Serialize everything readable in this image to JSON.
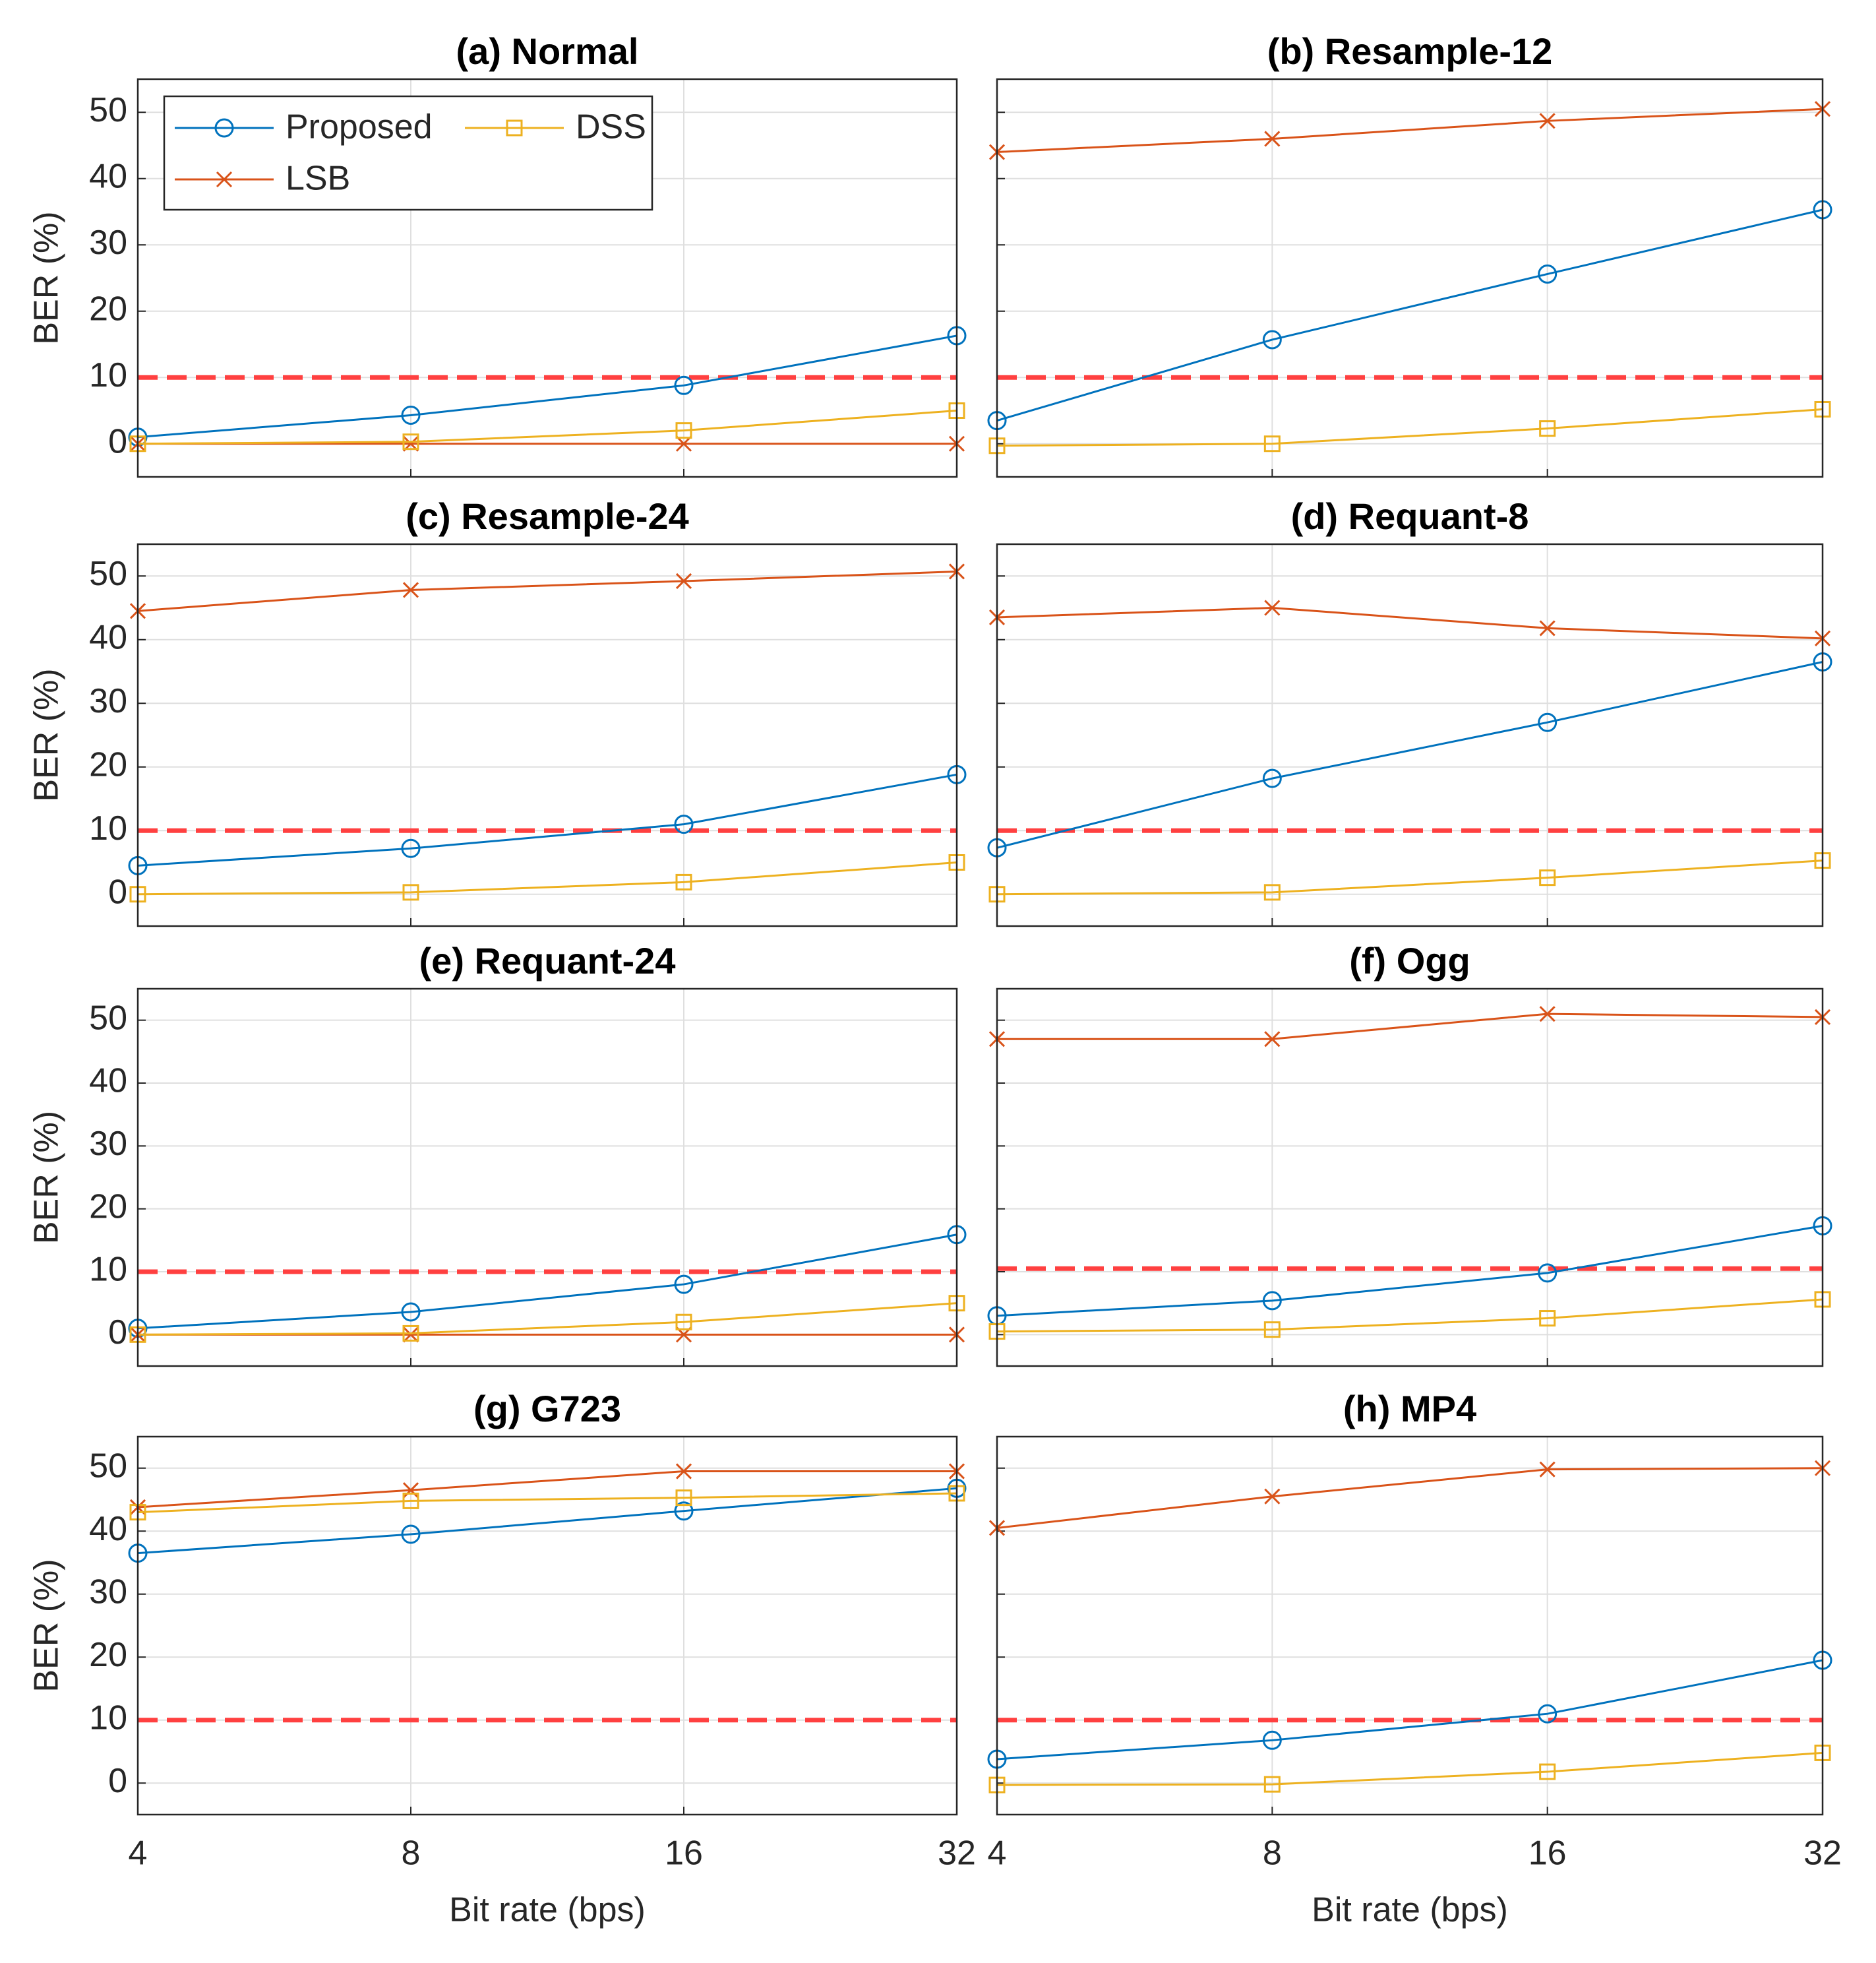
{
  "chart_data": [
    {
      "type": "line",
      "title": "(a) Normal",
      "ylabel": "BER (%)",
      "xscale": "log",
      "x": [
        4,
        8,
        16,
        32
      ],
      "xlim": [
        4,
        32
      ],
      "xticks": [
        4,
        8,
        16,
        32
      ],
      "ylim": [
        -5,
        55
      ],
      "yticks": [
        0,
        10,
        20,
        30,
        40,
        50
      ],
      "grid": true,
      "xtick_labels": false,
      "ytick_labels": true,
      "threshold": 10,
      "threshold_color": "#ff4040",
      "legend": "upper left",
      "series": [
        {
          "name": "Proposed",
          "color": "#0072bd",
          "marker": "circle",
          "values": [
            1,
            4.3,
            8.8,
            16.3
          ]
        },
        {
          "name": "LSB",
          "color": "#d95319",
          "marker": "x",
          "values": [
            0,
            0,
            0,
            0
          ]
        },
        {
          "name": "DSS",
          "color": "#edb120",
          "marker": "square",
          "values": [
            0,
            0.3,
            2,
            5
          ]
        }
      ]
    },
    {
      "type": "line",
      "title": "(b) Resample-12",
      "xscale": "log",
      "x": [
        4,
        8,
        16,
        32
      ],
      "xlim": [
        4,
        32
      ],
      "xticks": [
        4,
        8,
        16,
        32
      ],
      "ylim": [
        -5,
        55
      ],
      "yticks": [
        0,
        10,
        20,
        30,
        40,
        50
      ],
      "grid": true,
      "xtick_labels": false,
      "ytick_labels": false,
      "threshold": 10,
      "threshold_color": "#ff4040",
      "series": [
        {
          "color": "#0072bd",
          "marker": "circle",
          "values": [
            3.5,
            15.7,
            25.6,
            35.3
          ]
        },
        {
          "color": "#d95319",
          "marker": "x",
          "values": [
            44,
            46,
            48.7,
            50.5
          ]
        },
        {
          "color": "#edb120",
          "marker": "square",
          "values": [
            -0.3,
            0,
            2.3,
            5.2
          ]
        }
      ]
    },
    {
      "type": "line",
      "title": "(c) Resample-24",
      "ylabel": "BER (%)",
      "xscale": "log",
      "x": [
        4,
        8,
        16,
        32
      ],
      "xlim": [
        4,
        32
      ],
      "xticks": [
        4,
        8,
        16,
        32
      ],
      "ylim": [
        -5,
        55
      ],
      "yticks": [
        0,
        10,
        20,
        30,
        40,
        50
      ],
      "grid": true,
      "xtick_labels": false,
      "ytick_labels": true,
      "threshold": 10,
      "threshold_color": "#ff4040",
      "series": [
        {
          "color": "#0072bd",
          "marker": "circle",
          "values": [
            4.5,
            7.2,
            11,
            18.8
          ]
        },
        {
          "color": "#d95319",
          "marker": "x",
          "values": [
            44.5,
            47.8,
            49.2,
            50.7
          ]
        },
        {
          "color": "#edb120",
          "marker": "square",
          "values": [
            0,
            0.3,
            1.9,
            5
          ]
        }
      ]
    },
    {
      "type": "line",
      "title": "(d) Requant-8",
      "xscale": "log",
      "x": [
        4,
        8,
        16,
        32
      ],
      "xlim": [
        4,
        32
      ],
      "xticks": [
        4,
        8,
        16,
        32
      ],
      "ylim": [
        -5,
        55
      ],
      "yticks": [
        0,
        10,
        20,
        30,
        40,
        50
      ],
      "grid": true,
      "xtick_labels": false,
      "ytick_labels": false,
      "threshold": 10,
      "threshold_color": "#ff4040",
      "series": [
        {
          "color": "#0072bd",
          "marker": "circle",
          "values": [
            7.3,
            18.2,
            27,
            36.5
          ]
        },
        {
          "color": "#d95319",
          "marker": "x",
          "values": [
            43.5,
            45,
            41.8,
            40.2
          ]
        },
        {
          "color": "#edb120",
          "marker": "square",
          "values": [
            0,
            0.3,
            2.6,
            5.3
          ]
        }
      ]
    },
    {
      "type": "line",
      "title": "(e) Requant-24",
      "ylabel": "BER (%)",
      "xscale": "log",
      "x": [
        4,
        8,
        16,
        32
      ],
      "xlim": [
        4,
        32
      ],
      "xticks": [
        4,
        8,
        16,
        32
      ],
      "ylim": [
        -5,
        55
      ],
      "yticks": [
        0,
        10,
        20,
        30,
        40,
        50
      ],
      "grid": true,
      "xtick_labels": false,
      "ytick_labels": true,
      "threshold": 10,
      "threshold_color": "#ff4040",
      "series": [
        {
          "color": "#0072bd",
          "marker": "circle",
          "values": [
            1,
            3.6,
            8,
            15.9
          ]
        },
        {
          "color": "#d95319",
          "marker": "x",
          "values": [
            0,
            0,
            0,
            0
          ]
        },
        {
          "color": "#edb120",
          "marker": "square",
          "values": [
            0,
            0.2,
            2,
            5
          ]
        }
      ]
    },
    {
      "type": "line",
      "title": "(f) Ogg",
      "xscale": "log",
      "x": [
        4,
        8,
        16,
        32
      ],
      "xlim": [
        4,
        32
      ],
      "xticks": [
        4,
        8,
        16,
        32
      ],
      "ylim": [
        -5,
        55
      ],
      "yticks": [
        0,
        10,
        20,
        30,
        40,
        50
      ],
      "grid": true,
      "xtick_labels": false,
      "ytick_labels": false,
      "threshold": 10.5,
      "threshold_color": "#ff4040",
      "series": [
        {
          "color": "#0072bd",
          "marker": "circle",
          "values": [
            3,
            5.4,
            9.8,
            17.3
          ]
        },
        {
          "color": "#d95319",
          "marker": "x",
          "values": [
            47,
            47,
            51,
            50.5
          ]
        },
        {
          "color": "#edb120",
          "marker": "square",
          "values": [
            0.5,
            0.8,
            2.6,
            5.6
          ]
        }
      ]
    },
    {
      "type": "line",
      "title": "(g) G723",
      "ylabel": "BER (%)",
      "xlabel": "Bit rate (bps)",
      "xscale": "log",
      "x": [
        4,
        8,
        16,
        32
      ],
      "xlim": [
        4,
        32
      ],
      "xticks": [
        4,
        8,
        16,
        32
      ],
      "ylim": [
        -5,
        55
      ],
      "yticks": [
        0,
        10,
        20,
        30,
        40,
        50
      ],
      "grid": true,
      "xtick_labels": true,
      "ytick_labels": true,
      "threshold": 10,
      "threshold_color": "#ff4040",
      "series": [
        {
          "color": "#0072bd",
          "marker": "circle",
          "values": [
            36.5,
            39.5,
            43.2,
            46.8
          ]
        },
        {
          "color": "#d95319",
          "marker": "x",
          "values": [
            43.8,
            46.5,
            49.5,
            49.5
          ]
        },
        {
          "color": "#edb120",
          "marker": "square",
          "values": [
            43,
            44.8,
            45.3,
            46
          ]
        }
      ]
    },
    {
      "type": "line",
      "title": "(h) MP4",
      "xlabel": "Bit rate (bps)",
      "xscale": "log",
      "x": [
        4,
        8,
        16,
        32
      ],
      "xlim": [
        4,
        32
      ],
      "xticks": [
        4,
        8,
        16,
        32
      ],
      "ylim": [
        -5,
        55
      ],
      "yticks": [
        0,
        10,
        20,
        30,
        40,
        50
      ],
      "grid": true,
      "xtick_labels": true,
      "ytick_labels": false,
      "threshold": 10,
      "threshold_color": "#ff4040",
      "series": [
        {
          "color": "#0072bd",
          "marker": "circle",
          "values": [
            3.8,
            6.8,
            11,
            19.5
          ]
        },
        {
          "color": "#d95319",
          "marker": "x",
          "values": [
            40.5,
            45.5,
            49.8,
            50
          ]
        },
        {
          "color": "#edb120",
          "marker": "square",
          "values": [
            -0.3,
            -0.2,
            1.8,
            4.8
          ]
        }
      ]
    }
  ]
}
